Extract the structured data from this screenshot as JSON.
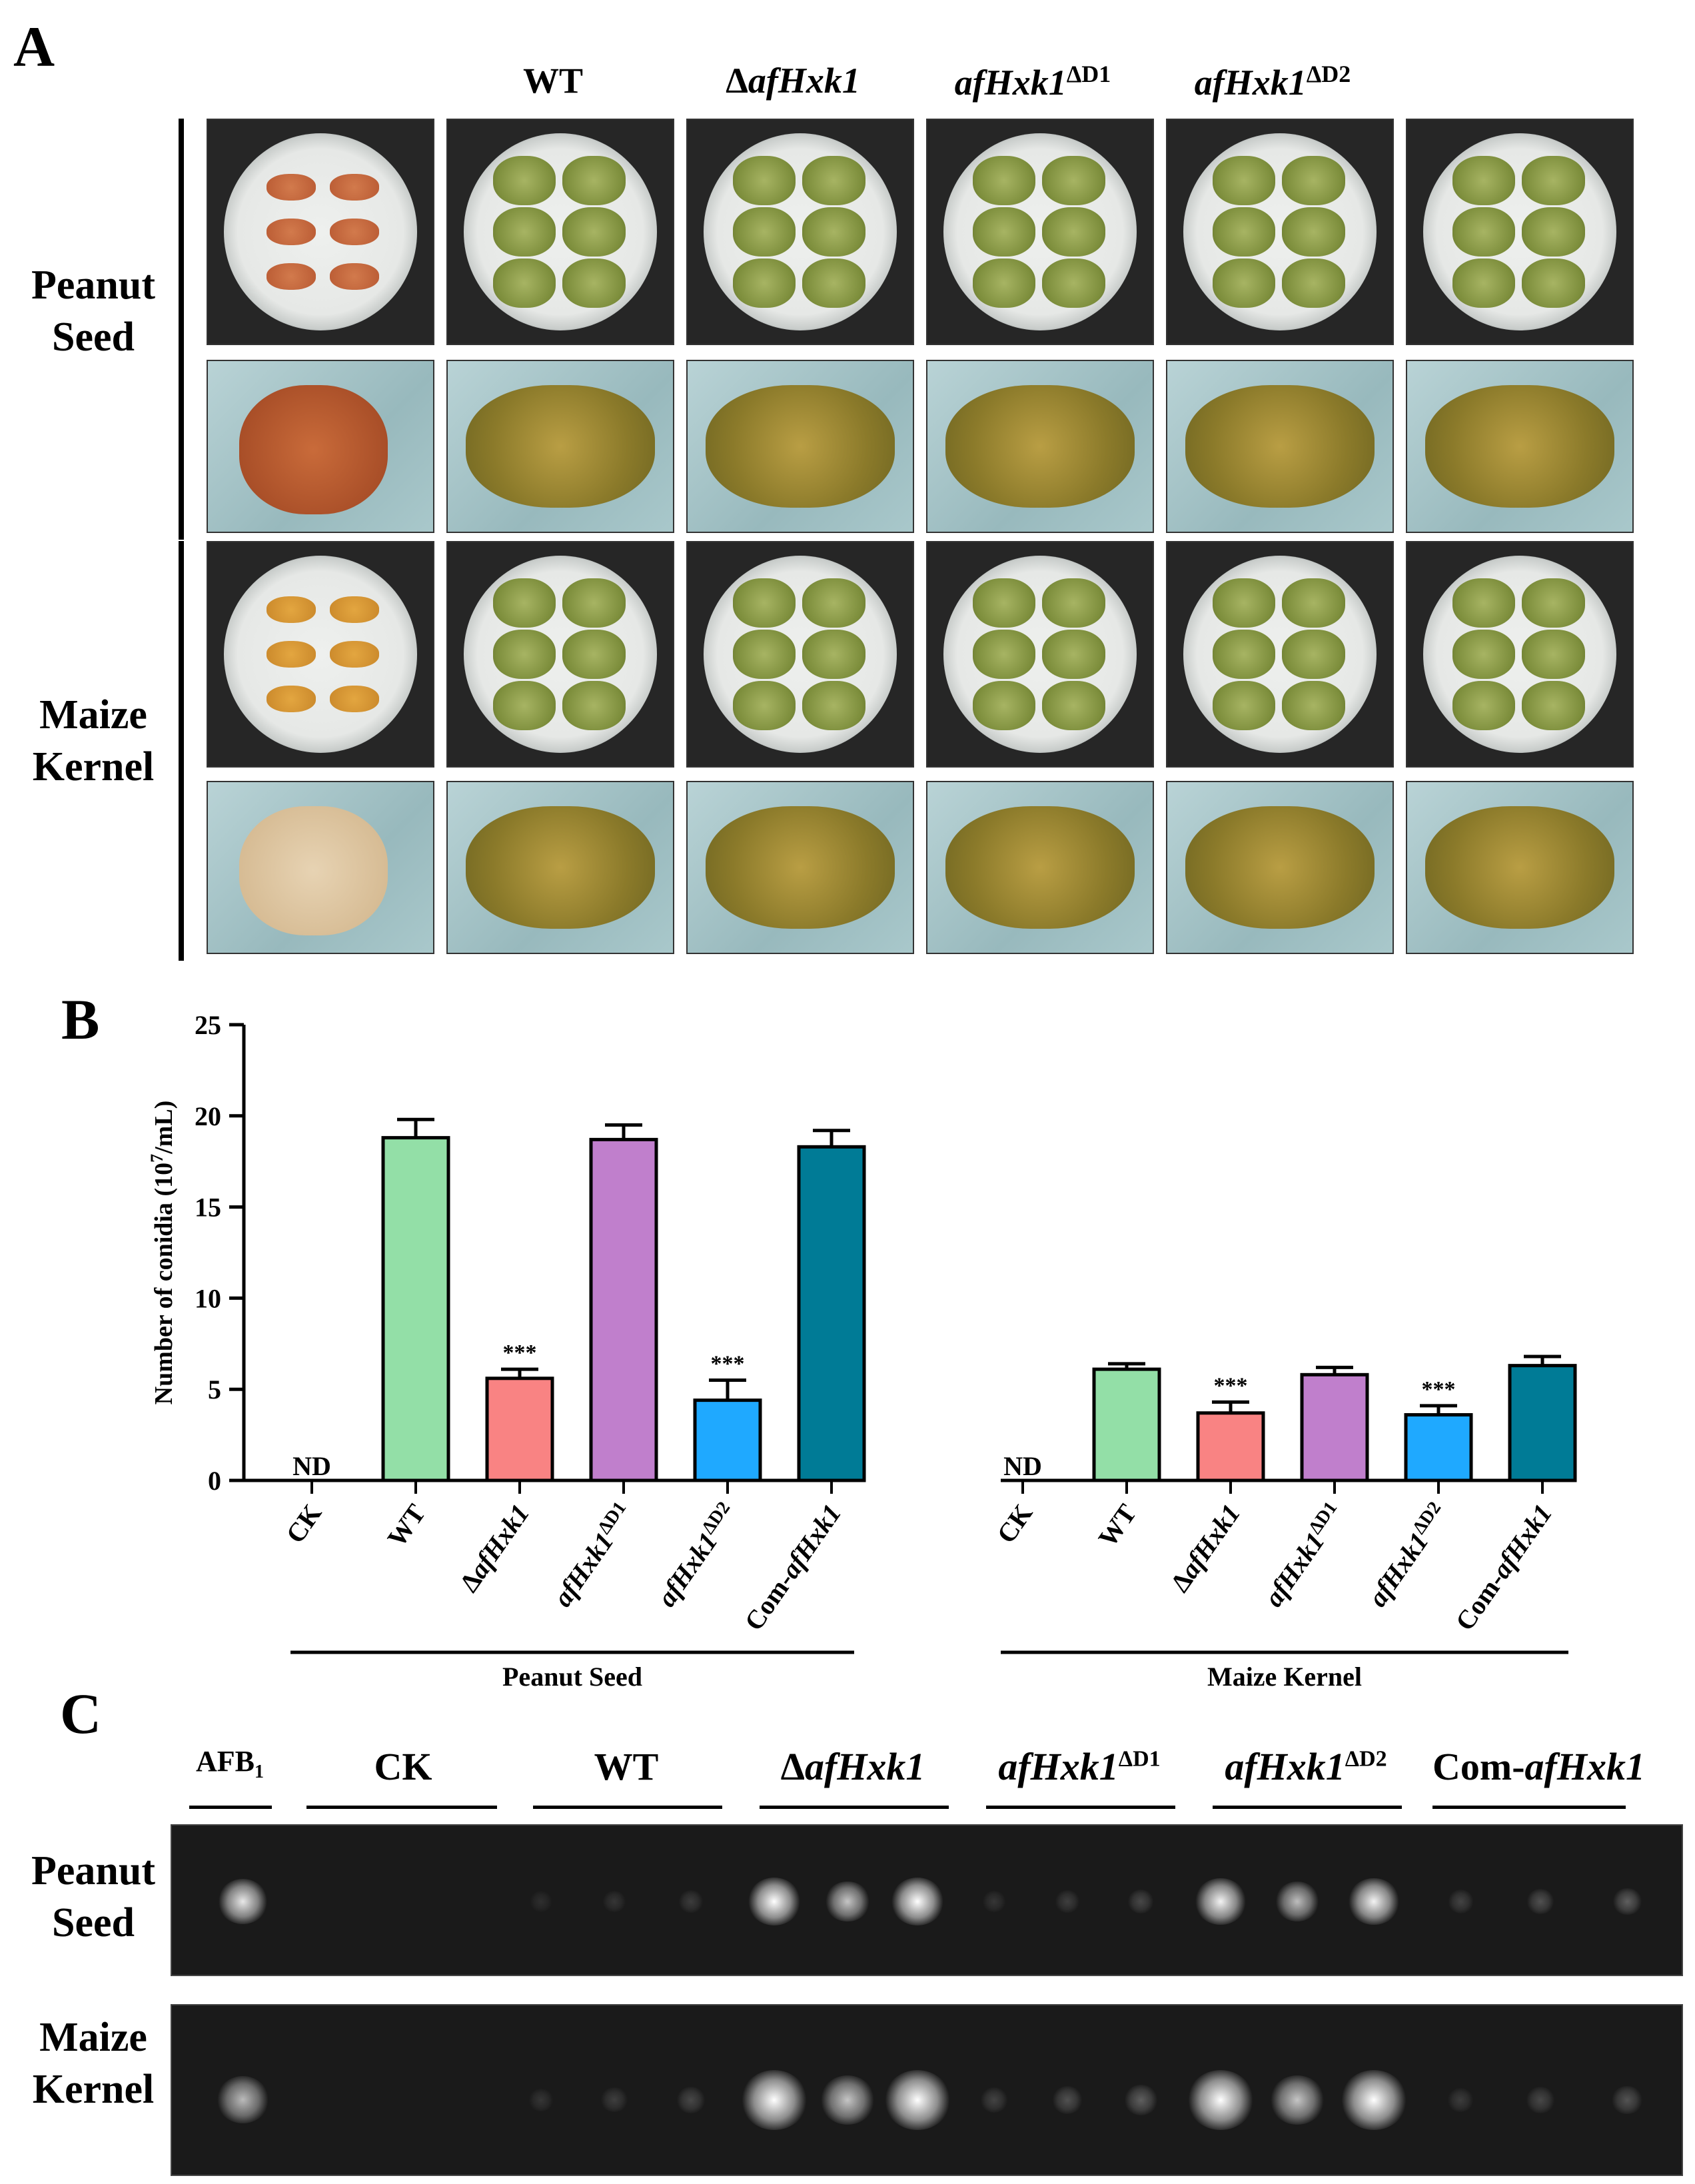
{
  "panel_a": {
    "letter": "A",
    "columns": [
      {
        "label": "",
        "italic": false
      },
      {
        "label": "WT",
        "italic": false
      },
      {
        "label": "ΔafHxk1",
        "prefix": "Δ",
        "core": "afHxk1",
        "sup": ""
      },
      {
        "label": "afHxk1ΔD1",
        "prefix": "",
        "core": "afHxk1",
        "sup": "ΔD1"
      },
      {
        "label": "afHxk1ΔD2",
        "prefix": "",
        "core": "afHxk1",
        "sup": "ΔD2"
      },
      {
        "label": "",
        "italic": false
      }
    ],
    "rows": [
      {
        "line1": "Peanut",
        "line2": "Seed"
      },
      {
        "line1": "Maize",
        "line2": "Kernel"
      }
    ]
  },
  "chart_data": {
    "type": "bar",
    "panel_letter": "B",
    "ylabel": "Number of conidia (10⁷/mL)",
    "ylabel_main": "Number of conidia (10",
    "ylabel_sup": "7",
    "ylabel_end": "/mL)",
    "ylim": [
      0,
      25
    ],
    "yticks": [
      0,
      5,
      10,
      15,
      20,
      25
    ],
    "categories": [
      "CK",
      "WT",
      "ΔafHxk1",
      "afHxk1ΔD1",
      "afHxk1ΔD2",
      "Com-afHxk1"
    ],
    "category_parts": [
      {
        "pre": "",
        "core": "CK",
        "sup": "",
        "italic": false
      },
      {
        "pre": "",
        "core": "WT",
        "sup": "",
        "italic": false
      },
      {
        "pre": "Δ",
        "core": "afHxk1",
        "sup": "",
        "italic": true
      },
      {
        "pre": "",
        "core": "afHxk1",
        "sup": "ΔD1",
        "italic": true
      },
      {
        "pre": "",
        "core": "afHxk1",
        "sup": "ΔD2",
        "italic": true
      },
      {
        "pre": "Com-",
        "core": "afHxk1",
        "sup": "",
        "italic": true
      }
    ],
    "colors": [
      "#ffffff",
      "#93dfa7",
      "#f98383",
      "#c07fcc",
      "#1fa9ff",
      "#007b96"
    ],
    "groups": [
      {
        "name": "Peanut Seed",
        "values": [
          0,
          18.8,
          5.6,
          18.7,
          4.4,
          18.3
        ],
        "errors": [
          0,
          1.0,
          0.5,
          0.8,
          1.1,
          0.9
        ],
        "annotations": [
          "ND",
          "",
          "***",
          "",
          "***",
          ""
        ]
      },
      {
        "name": "Maize Kernel",
        "values": [
          0,
          6.1,
          3.7,
          5.8,
          3.6,
          6.3
        ],
        "errors": [
          0,
          0.3,
          0.6,
          0.4,
          0.5,
          0.5
        ],
        "annotations": [
          "ND",
          "",
          "***",
          "",
          "***",
          ""
        ]
      }
    ]
  },
  "panel_c": {
    "letter": "C",
    "lanes": [
      {
        "pre": "",
        "core": "AFB",
        "sub": "1",
        "sup": "",
        "italic": false
      },
      {
        "pre": "",
        "core": "CK",
        "sub": "",
        "sup": "",
        "italic": false
      },
      {
        "pre": "",
        "core": "WT",
        "sub": "",
        "sup": "",
        "italic": false
      },
      {
        "pre": "Δ",
        "core": "afHxk1",
        "sub": "",
        "sup": "",
        "italic": true
      },
      {
        "pre": "",
        "core": "afHxk1",
        "sub": "",
        "sup": "ΔD1",
        "italic": true
      },
      {
        "pre": "",
        "core": "afHxk1",
        "sub": "",
        "sup": "ΔD2",
        "italic": true
      },
      {
        "pre": "Com-",
        "core": "afHxk1",
        "sub": "",
        "sup": "",
        "italic": true
      }
    ],
    "rows": [
      {
        "line1": "Peanut",
        "line2": "Seed",
        "intensity": [
          0.9,
          0,
          0.15,
          1.0,
          0.2,
          0.95,
          0.3
        ]
      },
      {
        "line1": "Maize",
        "line2": "Kernel",
        "intensity": [
          0.7,
          0,
          0.2,
          1.0,
          0.3,
          1.0,
          0.25
        ]
      }
    ]
  }
}
